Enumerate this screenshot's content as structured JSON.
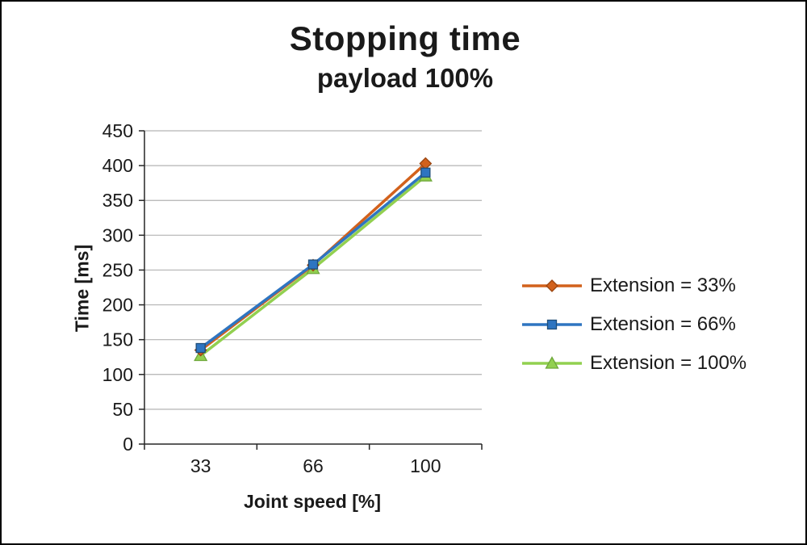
{
  "title": "Stopping time",
  "subtitle": "payload 100%",
  "chart_data": {
    "type": "line",
    "title": "Stopping time",
    "subtitle": "payload 100%",
    "xlabel": "Joint speed [%]",
    "ylabel": "Time [ms]",
    "categories": [
      "33",
      "66",
      "100"
    ],
    "x": [
      33,
      66,
      100
    ],
    "ylim": [
      0,
      450
    ],
    "ytick_step": 50,
    "yticks": [
      "0",
      "50",
      "100",
      "150",
      "200",
      "250",
      "300",
      "350",
      "400",
      "450"
    ],
    "grid": true,
    "legend_position": "right",
    "series": [
      {
        "name": "Extension = 33%",
        "marker": "diamond",
        "color": "#d2611c",
        "edge": "#9a4511",
        "values": [
          135,
          257,
          403
        ]
      },
      {
        "name": "Extension = 66%",
        "marker": "square",
        "color": "#2e75c1",
        "edge": "#1f4e79",
        "values": [
          138,
          258,
          390
        ]
      },
      {
        "name": "Extension = 100%",
        "marker": "triangle",
        "color": "#92d050",
        "edge": "#6fa83b",
        "values": [
          127,
          252,
          385
        ]
      }
    ]
  }
}
